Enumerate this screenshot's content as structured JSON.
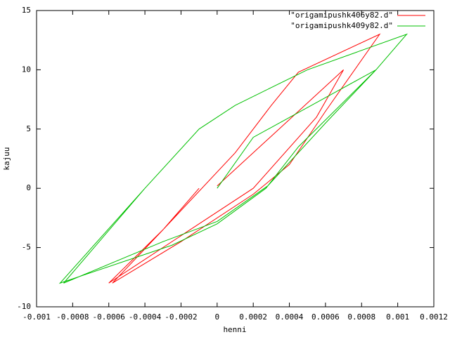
{
  "chart_data": {
    "type": "line",
    "x_label": "henni",
    "y_label": "kajuu",
    "xlim": [
      -0.001,
      0.0012
    ],
    "xticks": [
      -0.001,
      -0.0008,
      -0.0006,
      -0.0004,
      -0.0002,
      0,
      0.0002,
      0.0004,
      0.0006,
      0.0008,
      0.001,
      0.0012
    ],
    "ylim": [
      -10,
      15
    ],
    "yticks": [
      -10,
      -5,
      0,
      5,
      10,
      15
    ],
    "grid": false,
    "legend": "top-right",
    "series": [
      {
        "name": "\"origamipushk406y82.d\"",
        "color": "#ff0000",
        "x": [
          0,
          0.0007,
          0.00055,
          0.0002,
          -0.0002,
          -0.0006,
          -0.0003,
          0.0001,
          0.0003,
          0.00045,
          0.0009,
          0.0006,
          0.0004,
          0.0002,
          -0.0002,
          -0.00058,
          -0.0003,
          -0.0001
        ],
        "values": [
          0.2,
          10,
          6,
          0,
          -4,
          -8,
          -3.5,
          3,
          7,
          9.8,
          13,
          6.5,
          2,
          -0.5,
          -4.5,
          -8,
          -3.5,
          0
        ]
      },
      {
        "name": "\"origamipushk409y82.d\"",
        "color": "#00c000",
        "x": [
          0,
          0.0002,
          0.00088,
          0.00045,
          0.00027,
          0,
          -0.00025,
          -0.00087,
          -0.0004,
          -0.0001,
          0.0001,
          0.0005,
          0.00105,
          0.00088,
          0.0006,
          0.00028,
          0,
          -0.0003,
          -0.00085,
          -0.0004
        ],
        "values": [
          0,
          4.3,
          10,
          3.5,
          0,
          -3,
          -4.8,
          -8,
          0,
          5,
          7,
          10,
          13,
          10,
          5.5,
          0.2,
          -2.8,
          -4.5,
          -8,
          0
        ]
      }
    ]
  }
}
